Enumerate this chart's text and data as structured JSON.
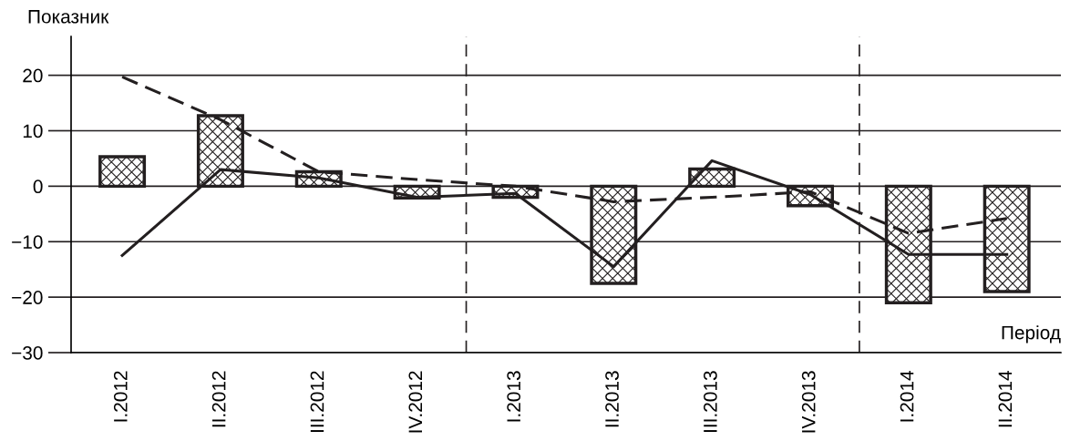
{
  "chart_data": {
    "type": "bar",
    "ylabel": "Показник",
    "xlabel": "Період",
    "categories": [
      "I.2012",
      "II.2012",
      "III.2012",
      "IV.2012",
      "I.2013",
      "II.2013",
      "III.2013",
      "IV.2013",
      "I.2014",
      "II.2014"
    ],
    "series": [
      {
        "color": "#231f20",
        "values": [
          5.3,
          12.7,
          2.6,
          -2.1,
          -2,
          -17.5,
          3.1,
          -3.5,
          -21,
          -19
        ]
      },
      {
        "type": "line",
        "color": "#231f20",
        "line_style": "solid",
        "values": [
          -12.5,
          3,
          1.5,
          -2,
          -1.3,
          -14.5,
          4.6,
          -1.5,
          -12.3,
          -12.3
        ]
      },
      {
        "type": "line",
        "color": "#231f20",
        "line_style": "dashed",
        "values": [
          19.7,
          12,
          2.6,
          1.2,
          0,
          -2.8,
          -2,
          -1,
          -8.5,
          -5.8
        ]
      }
    ],
    "ylim": [
      -30,
      27
    ],
    "yticks": [
      {
        "value": -30,
        "label": "−30"
      },
      {
        "value": -20,
        "label": "−20"
      },
      {
        "value": -10,
        "label": "−10"
      },
      0,
      10,
      20
    ],
    "grid": "y"
  }
}
